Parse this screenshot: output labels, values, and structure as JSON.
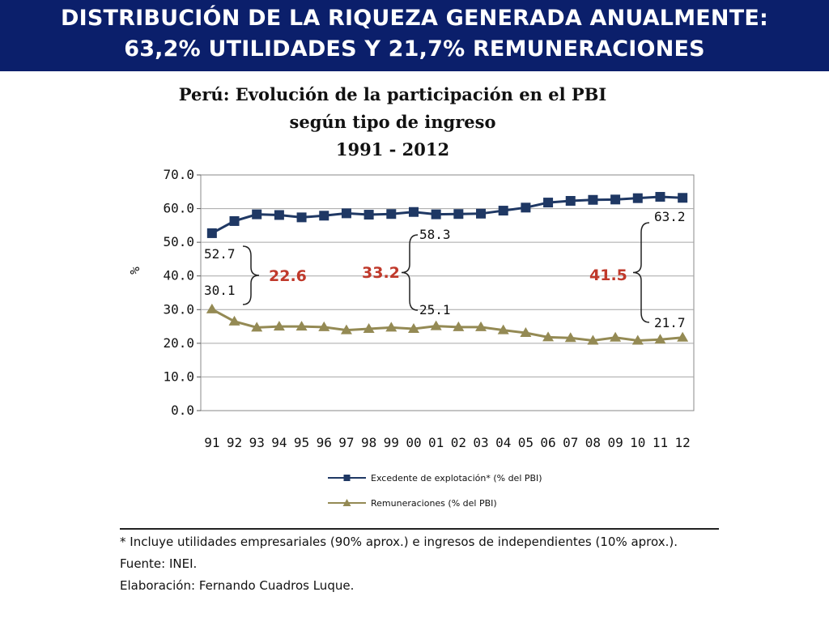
{
  "header": {
    "line1": "DISTRIBUCIÓN DE LA RIQUEZA GENERADA ANUALMENTE:",
    "line2": "63,2% UTILIDADES Y 21,7% REMUNERACIONES"
  },
  "chart_data": {
    "type": "line",
    "title_lines": [
      "Perú: Evolución de la participación en el PBI",
      "según tipo de ingreso",
      "1991 - 2012"
    ],
    "ylabel": "%",
    "ylim": [
      0,
      70
    ],
    "yticks": [
      "0.0",
      "10.0",
      "20.0",
      "30.0",
      "40.0",
      "50.0",
      "60.0",
      "70.0"
    ],
    "categories": [
      "91",
      "92",
      "93",
      "94",
      "95",
      "96",
      "97",
      "98",
      "99",
      "00",
      "01",
      "02",
      "03",
      "04",
      "05",
      "06",
      "07",
      "08",
      "09",
      "10",
      "11",
      "12"
    ],
    "grid": true,
    "legend_position": "bottom",
    "series": [
      {
        "name": "Excedente de explotación* (% del PBI)",
        "color": "#1f3864",
        "marker": "square",
        "values": [
          52.7,
          56.3,
          58.3,
          58.1,
          57.4,
          57.9,
          58.6,
          58.2,
          58.4,
          59.0,
          58.3,
          58.4,
          58.5,
          59.4,
          60.3,
          61.8,
          62.3,
          62.6,
          62.7,
          63.1,
          63.5,
          63.2
        ]
      },
      {
        "name": "Remuneraciones (% del PBI)",
        "color": "#948a54",
        "marker": "triangle",
        "values": [
          30.1,
          26.5,
          24.7,
          25.0,
          25.0,
          24.8,
          23.9,
          24.3,
          24.7,
          24.3,
          25.1,
          24.8,
          24.8,
          23.9,
          23.1,
          21.8,
          21.6,
          20.8,
          21.7,
          20.8,
          21.1,
          21.7
        ]
      }
    ],
    "annotations": {
      "left": {
        "top": "52.7",
        "bottom": "30.1",
        "gap": "22.6"
      },
      "middle": {
        "top": "58.3",
        "bottom": "25.1",
        "gap": "33.2"
      },
      "right": {
        "top": "63.2",
        "bottom": "21.7",
        "gap": "41.5"
      }
    },
    "gap_color": "#c0392b"
  },
  "notes": {
    "footnote": "* Incluye utilidades empresariales (90% aprox.) e ingresos de independientes (10% aprox.).",
    "source": "Fuente: INEI.",
    "author": "Elaboración: Fernando Cuadros Luque."
  }
}
